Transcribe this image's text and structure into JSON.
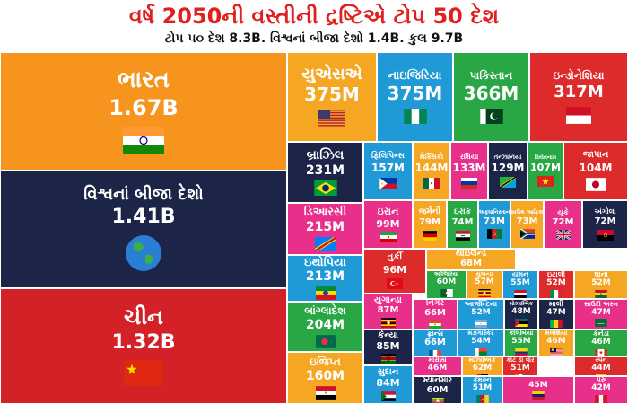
{
  "header": {
    "title": "વર્ષ 2050ની વસ્તીની દ્રષ્ટિએ ટોપ 50 દેશ",
    "subtitle": "ટોપ ૫૦ દેશ 8.3B. વિશ્વનાં બીજા દેશો 1.4B. કુલ 9.7B"
  },
  "chart_data": {
    "type": "treemap",
    "title": "વર્ષ 2050ની વસ્તીની દ્રષ્ટિએ ટોપ 50 દેશ",
    "subtitle": "ટોપ ૫૦ દેશ 8.3B. વિશ્વનાં બીજા દેશો 1.4B. કુલ 9.7B",
    "tiles": [
      {
        "name": "ભારત",
        "label": "1.67B",
        "value": 1670,
        "color": "#f7941d",
        "flag": "india"
      },
      {
        "name": "વિશ્વનાં બીજા દેશો",
        "label": "1.41B",
        "value": 1410,
        "color": "#1c2447",
        "flag": "globe"
      },
      {
        "name": "ચીન",
        "label": "1.32B",
        "value": 1320,
        "color": "#d42027",
        "flag": "china"
      },
      {
        "name": "યુએસએ",
        "label": "375M",
        "value": 375,
        "color": "#f5a623",
        "flag": "usa"
      },
      {
        "name": "નાઇજિરિયા",
        "label": "375M",
        "value": 375,
        "color": "#1f9ad6",
        "flag": "nigeria"
      },
      {
        "name": "પાકિસ્તાન",
        "label": "366M",
        "value": 366,
        "color": "#29a744",
        "flag": "pakistan"
      },
      {
        "name": "ઇન્ડોનેશિયા",
        "label": "317M",
        "value": 317,
        "color": "#dd2a2a",
        "flag": "indonesia"
      },
      {
        "name": "બ્રાઝિલ",
        "label": "231M",
        "value": 231,
        "color": "#1c2447",
        "flag": "brazil"
      },
      {
        "name": "ડિઆરસી",
        "label": "215M",
        "value": 215,
        "color": "#e8308a",
        "flag": "drc"
      },
      {
        "name": "ઇથોપિયા",
        "label": "213M",
        "value": 213,
        "color": "#1f9ad6",
        "flag": "ethiopia"
      },
      {
        "name": "બાંગ્લાદેશ",
        "label": "204M",
        "value": 204,
        "color": "#29a744",
        "flag": "bangladesh"
      },
      {
        "name": "ઇજિપ્ત",
        "label": "160M",
        "value": 160,
        "color": "#f5a623",
        "flag": "egypt"
      },
      {
        "name": "ફિલિપિન્સ",
        "label": "157M",
        "value": 157,
        "color": "#1f9ad6",
        "flag": "philippines"
      },
      {
        "name": "મેક્સિકો",
        "label": "144M",
        "value": 144,
        "color": "#f5a623",
        "flag": "mexico"
      },
      {
        "name": "રશિયા",
        "label": "133M",
        "value": 133,
        "color": "#e8308a",
        "flag": "russia"
      },
      {
        "name": "તન્ઝાનિયા",
        "label": "129M",
        "value": 129,
        "color": "#1c2447",
        "flag": "tanzania"
      },
      {
        "name": "વિયેતનામ",
        "label": "107M",
        "value": 107,
        "color": "#29a744",
        "flag": "vietnam"
      },
      {
        "name": "જાપાન",
        "label": "104M",
        "value": 104,
        "color": "#dd2a2a",
        "flag": "japan"
      },
      {
        "name": "ઇરાન",
        "label": "99M",
        "value": 99,
        "color": "#e8308a",
        "flag": "iran"
      },
      {
        "name": "જર્મની",
        "label": "79M",
        "value": 79,
        "color": "#f5a623",
        "flag": "germany"
      },
      {
        "name": "ઇરાક",
        "label": "74M",
        "value": 74,
        "color": "#29a744",
        "flag": "iraq"
      },
      {
        "name": "અફઘાનિસ્તાન",
        "label": "73M",
        "value": 73,
        "color": "#1f9ad6",
        "flag": "afghanistan"
      },
      {
        "name": "સાઉથ આફ્રિકા",
        "label": "73M",
        "value": 73,
        "color": "#f5a623",
        "flag": "southafrica"
      },
      {
        "name": "યુકે",
        "label": "72M",
        "value": 72,
        "color": "#e8308a",
        "flag": "uk"
      },
      {
        "name": "અંગોલા",
        "label": "72M",
        "value": 72,
        "color": "#1c2447",
        "flag": "angola"
      },
      {
        "name": "તુર્કી",
        "label": "96M",
        "value": 96,
        "color": "#dd2a2a",
        "flag": "turkey"
      },
      {
        "name": "થાઇલેન્ડ",
        "label": "68M",
        "value": 68,
        "color": "#f5a623",
        "flag": "thailand"
      },
      {
        "name": "અલ્જિરિયા",
        "label": "60M",
        "value": 60,
        "color": "#29a744",
        "flag": "algeria"
      },
      {
        "name": "યુગાન્ડા",
        "label": "57M",
        "value": 57,
        "color": "#f5a623",
        "flag": "uganda"
      },
      {
        "name": "યમન",
        "label": "55M",
        "value": 55,
        "color": "#1f9ad6",
        "flag": "yemen"
      },
      {
        "name": "ઇટાલી",
        "label": "52M",
        "value": 52,
        "color": "#dd2a2a",
        "flag": "italy"
      },
      {
        "name": "ઘાના",
        "label": "52M",
        "value": 52,
        "color": "#f5a623",
        "flag": "ghana"
      },
      {
        "name": "યુગાન્ડા",
        "label": "87M",
        "value": 87,
        "color": "#e8308a",
        "flag": "uganda"
      },
      {
        "name": "નિગેર",
        "label": "66M",
        "value": 66,
        "color": "#e8308a",
        "flag": "niger"
      },
      {
        "name": "આર્જેન્ટિના",
        "label": "52M",
        "value": 52,
        "color": "#1f9ad6",
        "flag": "argentina"
      },
      {
        "name": "મોઝામ્બિક",
        "label": "48M",
        "value": 48,
        "color": "#1c2447",
        "flag": "mozambique"
      },
      {
        "name": "માલી",
        "label": "47M",
        "value": 47,
        "color": "#1c2447",
        "flag": "mali"
      },
      {
        "name": "સાઉદી અરબ",
        "label": "47M",
        "value": 47,
        "color": "#e8308a",
        "flag": "saudi"
      },
      {
        "name": "કેન્યા",
        "label": "85M",
        "value": 85,
        "color": "#1c2447",
        "flag": "kenya"
      },
      {
        "name": "ફ્રાન્સ",
        "label": "66M",
        "value": 66,
        "color": "#1f9ad6",
        "flag": "france"
      },
      {
        "name": "મડાગાસ્કર",
        "label": "54M",
        "value": 54,
        "color": "#1f9ad6",
        "flag": "madagascar"
      },
      {
        "name": "કોલંબિયા",
        "label": "55M",
        "value": 55,
        "color": "#29a744",
        "flag": "colombia"
      },
      {
        "name": "મલેશિયા",
        "label": "46M",
        "value": 46,
        "color": "#f5a623",
        "flag": "malaysia"
      },
      {
        "name": "કેનેડા",
        "label": "46M",
        "value": 46,
        "color": "#29a744",
        "flag": "canada"
      },
      {
        "name": "મોરોક્કો",
        "label": "46M",
        "value": 46,
        "color": "#e8308a",
        "flag": "morocco"
      },
      {
        "name": "મોઝામ્બિક",
        "label": "62M",
        "value": 62,
        "color": "#f5a623",
        "flag": "mozambique"
      },
      {
        "name": "કોટ ડી વોર",
        "label": "51M",
        "value": 51,
        "color": "#dd2a2a",
        "flag": "ivorycoast"
      },
      {
        "name": "સ્પેન",
        "label": "44M",
        "value": 44,
        "color": "#dd2a2a",
        "flag": "spain"
      },
      {
        "name": "સુદાન",
        "label": "84M",
        "value": 84,
        "color": "#1f9ad6",
        "flag": "sudan"
      },
      {
        "name": "મ્યાનમાર",
        "label": "60M",
        "value": 60,
        "color": "#1c2447",
        "flag": "myanmar"
      },
      {
        "name": "કેમરુન",
        "label": "51M",
        "value": 51,
        "color": "#1f9ad6",
        "flag": "cameroon"
      },
      {
        "name": "",
        "label": "45M",
        "value": 45,
        "color": "#e8308a",
        "flag": "venezuela"
      },
      {
        "name": "પેરુ",
        "label": "42M",
        "value": 42,
        "color": "#e8308a",
        "flag": "peru"
      }
    ]
  }
}
